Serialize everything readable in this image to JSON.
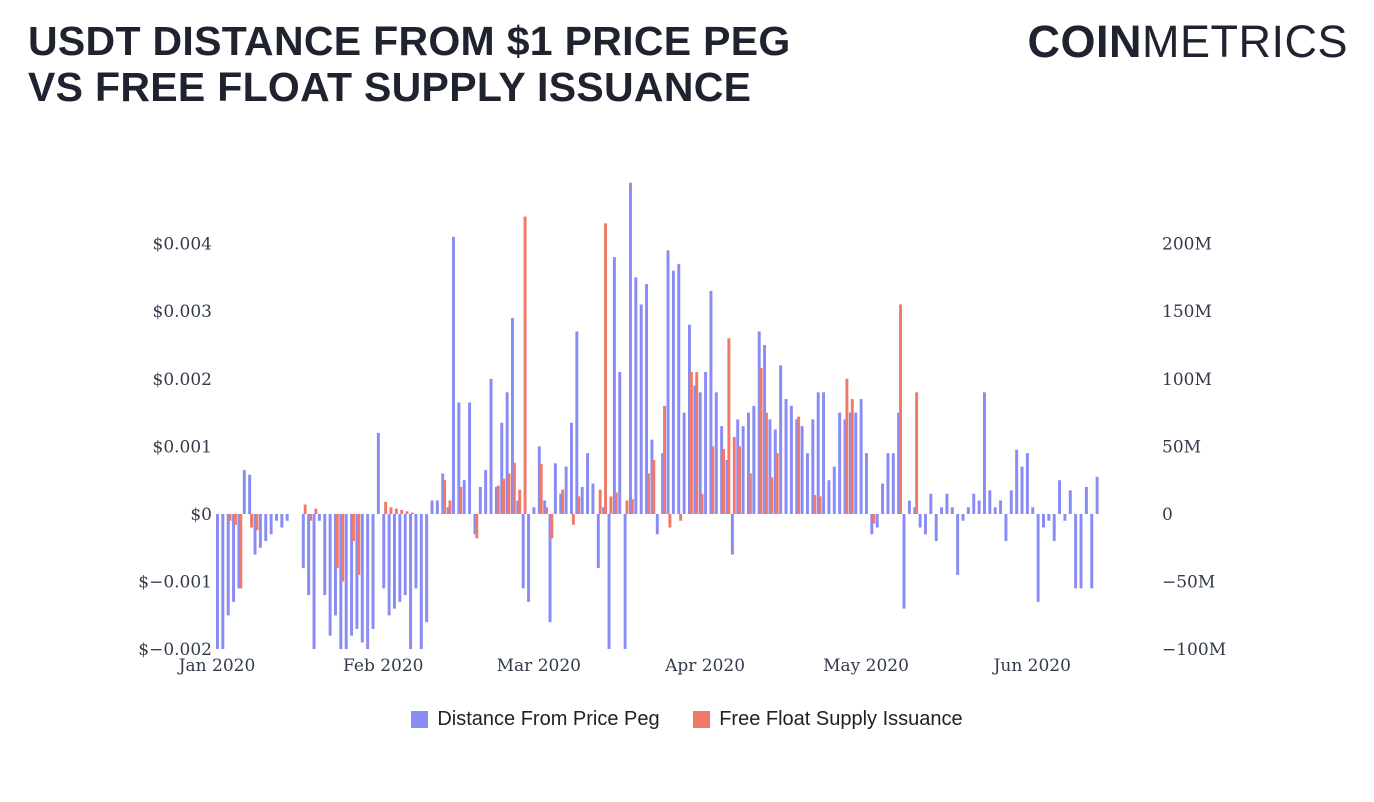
{
  "header": {
    "title_line1": "USDT DISTANCE FROM $1 PRICE PEG",
    "title_line2": "VS FREE FLOAT SUPPLY ISSUANCE",
    "logo_bold": "COIN",
    "logo_light": "METRICS"
  },
  "colors": {
    "peg": "#8a8cf5",
    "issuance": "#f07a6a",
    "text": "#1f2330"
  },
  "chart_data": {
    "type": "bar",
    "x_tick_labels": [
      "Jan 2020",
      "Feb 2020",
      "Mar 2020",
      "Apr 2020",
      "May 2020",
      "Jun 2020"
    ],
    "y_left_tick_labels": [
      "$0.004",
      "$0.003",
      "$0.002",
      "$0.001",
      "$0",
      "$−0.001",
      "$−0.002"
    ],
    "y_right_tick_labels": [
      "200M",
      "150M",
      "100M",
      "50M",
      "0",
      "−50M",
      "−100M"
    ],
    "ylim_left": [
      -0.002,
      0.005
    ],
    "ylim_right": [
      -100,
      250
    ],
    "grid": false,
    "legend_position": "bottom",
    "series": [
      {
        "name": "Distance From Price Peg",
        "axis": "left",
        "start": "2020-01-01",
        "values": [
          -0.002,
          -0.002,
          -0.0015,
          -0.0013,
          -0.0011,
          0.00065,
          0.00058,
          -0.0006,
          -0.0005,
          -0.0004,
          -0.0003,
          -0.0001,
          -0.0002,
          -0.0001,
          0,
          0,
          -0.0008,
          -0.0012,
          -0.002,
          -0.0001,
          -0.0012,
          -0.0018,
          -0.0015,
          -0.002,
          -0.002,
          -0.0018,
          -0.0017,
          -0.0019,
          -0.002,
          -0.0017,
          0.0012,
          -0.0011,
          -0.0015,
          -0.0014,
          -0.0013,
          -0.0012,
          -0.002,
          -0.0011,
          -0.002,
          -0.0016,
          0.0002,
          0.0002,
          0.0006,
          0.0001,
          0.0041,
          0.00165,
          0.0005,
          0.00165,
          -0.0003,
          0.0004,
          0.00065,
          0.002,
          0.0004,
          0.00135,
          0.0018,
          0.0029,
          0.0002,
          -0.0011,
          -0.0013,
          0.0001,
          0.001,
          0.0002,
          -0.0016,
          0.00075,
          0.0003,
          0.0007,
          0.00135,
          0.0027,
          0.0004,
          0.0009,
          0.00045,
          -0.0008,
          0.0001,
          -0.002,
          0.0038,
          0.0021,
          -0.002,
          0.0049,
          0.0035,
          0.0031,
          0.0034,
          0.0011,
          -0.0003,
          0.0009,
          0.0039,
          0.0036,
          0.0037,
          0.0015,
          0.0028,
          0.0019,
          0.0018,
          0.0021,
          0.0033,
          0.0018,
          0.0013,
          0.0008,
          -0.0006,
          0.0014,
          0.0013,
          0.0015,
          0.0016,
          0.0027,
          0.0025,
          0.0014,
          0.00125,
          0.0022,
          0.0017,
          0.0016,
          0.0014,
          0.0013,
          0.0009,
          0.0014,
          0.0018,
          0.0018,
          0.0005,
          0.0007,
          0.0015,
          0.0014,
          0.0015,
          0.0015,
          0.0017,
          0.0009,
          -0.0003,
          -0.0002,
          0.00045,
          0.0009,
          0.0009,
          0.0015,
          -0.0014,
          0.0002,
          0.0001,
          -0.0002,
          -0.0003,
          0.0003,
          -0.0004,
          0.0001,
          0.0003,
          0.0001,
          -0.0009,
          -0.0001,
          0.0001,
          0.0003,
          0.0002,
          0.0018,
          0.00035,
          0.0001,
          0.0002,
          -0.0004,
          0.00035,
          0.00095,
          0.0007,
          0.0009,
          0.0001,
          -0.0013,
          -0.0002,
          -0.0001,
          -0.0004,
          0.0005,
          -0.0001,
          0.00035,
          -0.0011,
          -0.0011,
          0.0004,
          -0.0011,
          0.00055
        ]
      },
      {
        "name": "Free Float Supply Issuance",
        "axis": "right",
        "start": "2020-01-01",
        "values": [
          0,
          0,
          -5,
          -8,
          -55,
          0,
          -10,
          -12,
          0,
          0,
          0,
          0,
          0,
          0,
          0,
          0,
          7,
          -5,
          4,
          0,
          0,
          0,
          -40,
          -50,
          0,
          -20,
          -45,
          0,
          0,
          0,
          0,
          9,
          5,
          4,
          3,
          2,
          1,
          0,
          0,
          0,
          0,
          0,
          25,
          10,
          0,
          20,
          0,
          0,
          -18,
          0,
          0,
          0,
          21,
          26,
          30,
          38,
          18,
          220,
          0,
          0,
          37,
          5,
          -18,
          0,
          18,
          0,
          -8,
          13,
          0,
          0,
          0,
          18,
          215,
          13,
          16,
          0,
          10,
          11,
          0,
          0,
          30,
          40,
          0,
          80,
          -10,
          0,
          -5,
          0,
          105,
          105,
          15,
          0,
          50,
          0,
          48,
          130,
          57,
          50,
          0,
          30,
          0,
          108,
          75,
          27,
          45,
          0,
          0,
          0,
          72,
          0,
          0,
          14,
          13,
          0,
          0,
          0,
          0,
          100,
          85,
          0,
          0,
          0,
          -7,
          0,
          0,
          0,
          0,
          155,
          0,
          0,
          90,
          0,
          0,
          0,
          0,
          0,
          0,
          0,
          0,
          0,
          0,
          0,
          0,
          0,
          0,
          0,
          0,
          0,
          0,
          0,
          0,
          0,
          0,
          0,
          0,
          0,
          0,
          0,
          0,
          0,
          0,
          0,
          0,
          0,
          0,
          0,
          0,
          0,
          0,
          0,
          0,
          0
        ]
      }
    ]
  }
}
